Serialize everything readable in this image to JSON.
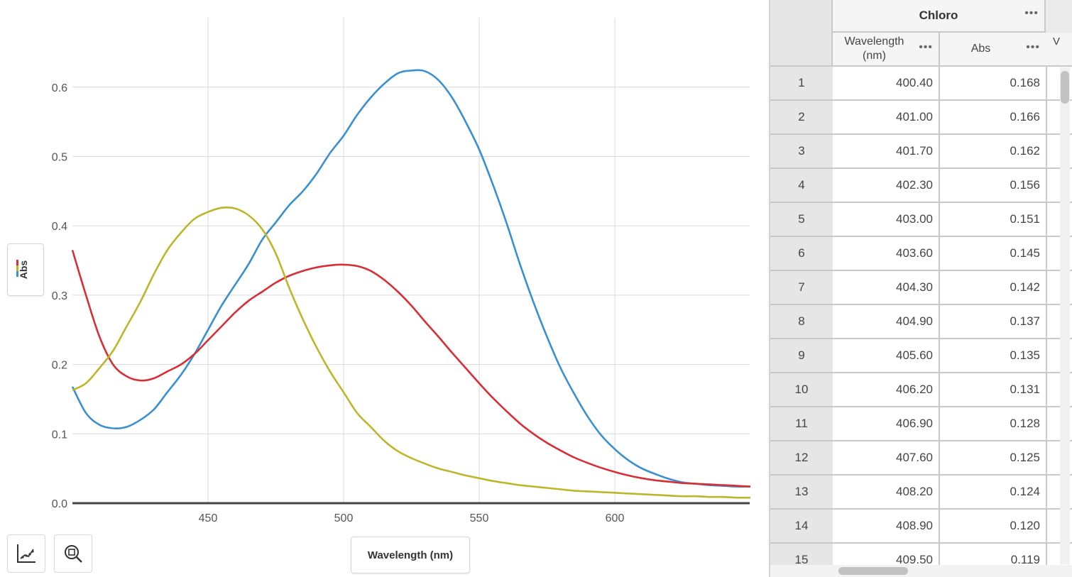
{
  "chart_data": {
    "type": "line",
    "xlabel": "Wavelength (nm)",
    "ylabel": "Abs",
    "xlim": [
      400,
      650
    ],
    "ylim": [
      0,
      0.65
    ],
    "xticks": [
      450,
      500,
      550,
      600
    ],
    "yticks": [
      0.0,
      0.1,
      0.2,
      0.3,
      0.4,
      0.5,
      0.6
    ],
    "grid": true,
    "series": [
      {
        "color": "#3a8fd0",
        "x": [
          400,
          405,
          410,
          415,
          420,
          425,
          430,
          435,
          440,
          445,
          450,
          455,
          460,
          465,
          470,
          475,
          480,
          485,
          490,
          495,
          500,
          505,
          510,
          515,
          520,
          525,
          530,
          535,
          540,
          545,
          550,
          555,
          560,
          565,
          570,
          575,
          580,
          585,
          590,
          595,
          600,
          605,
          610,
          615,
          620,
          625,
          630,
          635,
          640,
          645,
          650
        ],
        "y": [
          0.168,
          0.13,
          0.113,
          0.108,
          0.11,
          0.12,
          0.135,
          0.16,
          0.185,
          0.215,
          0.25,
          0.285,
          0.315,
          0.345,
          0.38,
          0.405,
          0.43,
          0.45,
          0.475,
          0.505,
          0.53,
          0.56,
          0.585,
          0.605,
          0.62,
          0.624,
          0.623,
          0.61,
          0.585,
          0.55,
          0.51,
          0.46,
          0.405,
          0.345,
          0.29,
          0.24,
          0.195,
          0.158,
          0.125,
          0.098,
          0.078,
          0.062,
          0.05,
          0.042,
          0.035,
          0.03,
          0.028,
          0.026,
          0.025,
          0.024,
          0.024
        ]
      },
      {
        "color": "#d62f35",
        "x": [
          400,
          405,
          410,
          415,
          420,
          425,
          430,
          435,
          440,
          445,
          450,
          455,
          460,
          465,
          470,
          475,
          480,
          485,
          490,
          495,
          500,
          505,
          510,
          515,
          520,
          525,
          530,
          535,
          540,
          545,
          550,
          555,
          560,
          565,
          570,
          575,
          580,
          585,
          590,
          595,
          600,
          605,
          610,
          615,
          620,
          625,
          630,
          635,
          640,
          645,
          650
        ],
        "y": [
          0.365,
          0.3,
          0.24,
          0.2,
          0.183,
          0.177,
          0.18,
          0.19,
          0.2,
          0.215,
          0.235,
          0.255,
          0.275,
          0.292,
          0.305,
          0.318,
          0.328,
          0.335,
          0.34,
          0.343,
          0.344,
          0.342,
          0.335,
          0.322,
          0.305,
          0.285,
          0.262,
          0.24,
          0.217,
          0.195,
          0.173,
          0.152,
          0.133,
          0.115,
          0.1,
          0.087,
          0.076,
          0.066,
          0.058,
          0.051,
          0.045,
          0.04,
          0.036,
          0.033,
          0.031,
          0.029,
          0.028,
          0.027,
          0.026,
          0.025,
          0.024
        ]
      },
      {
        "color": "#bfb52a",
        "x": [
          400,
          405,
          410,
          415,
          420,
          425,
          430,
          435,
          440,
          445,
          450,
          455,
          460,
          465,
          470,
          475,
          480,
          485,
          490,
          495,
          500,
          505,
          510,
          515,
          520,
          525,
          530,
          535,
          540,
          545,
          550,
          555,
          560,
          565,
          570,
          575,
          580,
          585,
          590,
          595,
          600,
          605,
          610,
          615,
          620,
          625,
          630,
          635,
          640,
          645,
          650
        ],
        "y": [
          0.163,
          0.173,
          0.195,
          0.22,
          0.255,
          0.29,
          0.33,
          0.365,
          0.39,
          0.41,
          0.42,
          0.426,
          0.425,
          0.415,
          0.395,
          0.36,
          0.31,
          0.265,
          0.225,
          0.19,
          0.16,
          0.13,
          0.11,
          0.09,
          0.075,
          0.065,
          0.057,
          0.05,
          0.045,
          0.04,
          0.036,
          0.032,
          0.029,
          0.026,
          0.024,
          0.022,
          0.02,
          0.018,
          0.017,
          0.016,
          0.015,
          0.014,
          0.013,
          0.012,
          0.011,
          0.01,
          0.01,
          0.009,
          0.009,
          0.008,
          0.008
        ]
      }
    ]
  },
  "chart_ui": {
    "ylabel_button": "Abs",
    "xlabel_button": "Wavelength (nm)",
    "legend_colors": [
      "#d62f35",
      "#bfb52a",
      "#3a8fd0"
    ],
    "tools": [
      {
        "icon": "graph-options-icon"
      },
      {
        "icon": "zoom-icon"
      }
    ]
  },
  "table": {
    "group_title": "Chloro",
    "columns": [
      "Wavelength\n(nm)",
      "Abs"
    ],
    "next_column_letter": "V",
    "rows": [
      {
        "n": "1",
        "wavelength": "400.40",
        "abs": "0.168"
      },
      {
        "n": "2",
        "wavelength": "401.00",
        "abs": "0.166"
      },
      {
        "n": "3",
        "wavelength": "401.70",
        "abs": "0.162"
      },
      {
        "n": "4",
        "wavelength": "402.30",
        "abs": "0.156"
      },
      {
        "n": "5",
        "wavelength": "403.00",
        "abs": "0.151"
      },
      {
        "n": "6",
        "wavelength": "403.60",
        "abs": "0.145"
      },
      {
        "n": "7",
        "wavelength": "404.30",
        "abs": "0.142"
      },
      {
        "n": "8",
        "wavelength": "404.90",
        "abs": "0.137"
      },
      {
        "n": "9",
        "wavelength": "405.60",
        "abs": "0.135"
      },
      {
        "n": "10",
        "wavelength": "406.20",
        "abs": "0.131"
      },
      {
        "n": "11",
        "wavelength": "406.90",
        "abs": "0.128"
      },
      {
        "n": "12",
        "wavelength": "407.60",
        "abs": "0.125"
      },
      {
        "n": "13",
        "wavelength": "408.20",
        "abs": "0.124"
      },
      {
        "n": "14",
        "wavelength": "408.90",
        "abs": "0.120"
      },
      {
        "n": "15",
        "wavelength": "409.50",
        "abs": "0.119"
      }
    ]
  }
}
